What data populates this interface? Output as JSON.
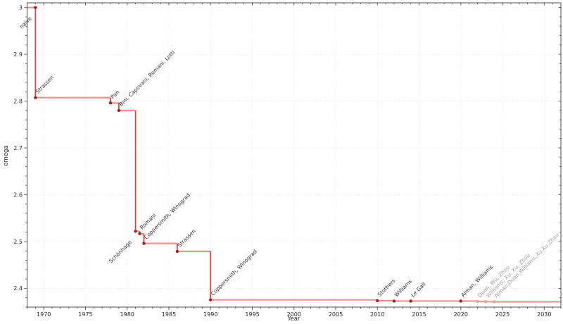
{
  "chart_data": {
    "type": "line",
    "subtype": "step-post",
    "title": "",
    "xlabel": "Year",
    "ylabel": "omega",
    "xlim": [
      1968,
      2032
    ],
    "ylim": [
      2.36,
      3.01
    ],
    "xticks": [
      1970,
      1975,
      1980,
      1985,
      1990,
      1995,
      2000,
      2005,
      2010,
      2015,
      2020,
      2025,
      2030
    ],
    "yticks": [
      {
        "value": 3.0,
        "label": "3"
      },
      {
        "value": 2.9,
        "label": "2.9"
      },
      {
        "value": 2.8,
        "label": "2.8"
      },
      {
        "value": 2.7,
        "label": "2.7"
      },
      {
        "value": 2.6,
        "label": "2.6"
      },
      {
        "value": 2.5,
        "label": "2.5"
      },
      {
        "value": 2.4,
        "label": "2.4"
      }
    ],
    "x_minor_step": 1,
    "y_minor_step": 0.02,
    "grid": "dotted",
    "legend": "none",
    "points": [
      {
        "year": 1969,
        "omega": 3.0,
        "label": "naive",
        "status": "established",
        "label_side": "below"
      },
      {
        "year": 1969,
        "omega": 2.8074,
        "label": "Strassen",
        "status": "established",
        "label_side": "above"
      },
      {
        "year": 1978,
        "omega": 2.796,
        "label": "Pan",
        "status": "established",
        "label_side": "above"
      },
      {
        "year": 1979,
        "omega": 2.78,
        "label": "Bini, Capovani, Romani, Lotti",
        "status": "established",
        "label_side": "above"
      },
      {
        "year": 1981,
        "omega": 2.522,
        "label": "Schönhage",
        "status": "established",
        "label_side": "below"
      },
      {
        "year": 1981.5,
        "omega": 2.517,
        "label": "Romani",
        "status": "established",
        "label_side": "above"
      },
      {
        "year": 1982,
        "omega": 2.496,
        "label": "Coppersmith, Winograd",
        "status": "established",
        "label_side": "above"
      },
      {
        "year": 1986,
        "omega": 2.479,
        "label": "Strassen",
        "status": "established",
        "label_side": "above"
      },
      {
        "year": 1990,
        "omega": 2.3755,
        "label": "Coppersmith, Winograd",
        "status": "established",
        "label_side": "above"
      },
      {
        "year": 2010,
        "omega": 2.3737,
        "label": "Stothers",
        "status": "established",
        "label_side": "above"
      },
      {
        "year": 2012,
        "omega": 2.3729,
        "label": "Williams",
        "status": "established",
        "label_side": "above"
      },
      {
        "year": 2014,
        "omega": 2.3728639,
        "label": "Le Gall",
        "status": "established",
        "label_side": "above"
      },
      {
        "year": 2020,
        "omega": 2.3728596,
        "label": "Alman, Williams",
        "status": "established",
        "label_side": "above"
      },
      {
        "year": 2022,
        "omega": 2.371866,
        "label": "Duan, Wu, Zhou",
        "status": "provisional",
        "label_side": "above"
      },
      {
        "year": 2023,
        "omega": 2.371552,
        "label": "Williams, Xu, Xu, Zhou",
        "status": "provisional",
        "label_side": "above"
      },
      {
        "year": 2024,
        "omega": 2.371339,
        "label": "Alman,Duan,Williams,Xu,Xu,Zhou",
        "status": "provisional",
        "label_side": "above"
      }
    ],
    "colors": {
      "line_horizontal": "#f2918d",
      "line_vertical": "#e23f3c",
      "marker_established": "#a32121",
      "marker_provisional": "#f09e9c",
      "label_established": "#2f2f2f",
      "label_provisional": "#9c9c9c",
      "grid": "#dcdcdc",
      "spine": "#4d4d4d",
      "tick_label": "#262626",
      "background": "#ffffff"
    }
  }
}
